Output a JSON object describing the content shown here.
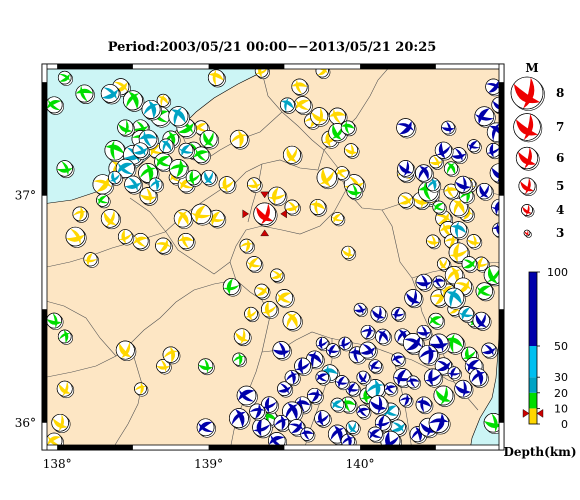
{
  "title": "Period:2003/05/21 00:00−−2013/05/21 20:25",
  "map": {
    "lon_range": [
      137.9,
      140.95
    ],
    "lat_range": [
      35.88,
      37.58
    ],
    "lon_ticks": [
      {
        "value": 138,
        "label": "138°"
      },
      {
        "value": 139,
        "label": "139°"
      },
      {
        "value": 140,
        "label": "140°"
      }
    ],
    "lat_ticks": [
      {
        "value": 36,
        "label": "36°"
      },
      {
        "value": 37,
        "label": "37°"
      }
    ],
    "colors": {
      "land": "#fde6c4",
      "sea": "#ccf5f5",
      "shallow": "#ffd700",
      "mid": "#00dd00",
      "deep30": "#00a3c4",
      "deep": "#0000aa",
      "main_event": "#ee0000"
    },
    "main_event": {
      "lon": 139.37,
      "lat": 36.92,
      "magnitude": 4.5
    }
  },
  "magnitude_legend": {
    "header": "M",
    "items": [
      {
        "label": "8",
        "value": 8
      },
      {
        "label": "7",
        "value": 7
      },
      {
        "label": "6",
        "value": 6
      },
      {
        "label": "5",
        "value": 5
      },
      {
        "label": "4",
        "value": 4
      },
      {
        "label": "3",
        "value": 3
      }
    ]
  },
  "depth_scale": {
    "unit_label": "Depth(km)",
    "ticks": [
      {
        "label": "100",
        "value": 100
      },
      {
        "label": "50",
        "value": 50
      },
      {
        "label": "30",
        "value": 30
      },
      {
        "label": "20",
        "value": 20
      },
      {
        "label": "10",
        "value": 10
      },
      {
        "label": "0",
        "value": 0
      }
    ],
    "bands": [
      {
        "from": 0,
        "to": 10,
        "color": "#ffd700"
      },
      {
        "from": 10,
        "to": 20,
        "color": "#00dd00"
      },
      {
        "from": 20,
        "to": 30,
        "color": "#00a3c4"
      },
      {
        "from": 30,
        "to": 50,
        "color": "#00bff0"
      },
      {
        "from": 50,
        "to": 100,
        "color": "#0000aa"
      }
    ],
    "marker_depth": 10
  },
  "chart_data": {
    "type": "scatter",
    "title": "Period:2003/05/21 00:00−−2013/05/21 20:25",
    "xlabel": "",
    "ylabel": "",
    "xlim": [
      137.9,
      140.95
    ],
    "ylim": [
      35.88,
      37.58
    ],
    "series": [
      {
        "name": "0-10km",
        "color": "#ffd700",
        "points": [
          [
            139.05,
            37.52
          ],
          [
            139.35,
            37.55
          ],
          [
            139.6,
            37.48
          ],
          [
            139.75,
            37.55
          ],
          [
            139.62,
            37.4
          ],
          [
            139.68,
            37.33
          ],
          [
            139.73,
            37.35
          ],
          [
            139.8,
            37.25
          ],
          [
            139.55,
            37.18
          ],
          [
            139.85,
            37.35
          ],
          [
            139.94,
            37.2
          ],
          [
            139.96,
            37.05
          ],
          [
            139.88,
            37.1
          ],
          [
            139.78,
            37.08
          ],
          [
            139.72,
            36.95
          ],
          [
            139.45,
            37.0
          ],
          [
            139.3,
            37.05
          ],
          [
            139.12,
            37.05
          ],
          [
            139.05,
            36.9
          ],
          [
            139.25,
            36.78
          ],
          [
            139.3,
            36.7
          ],
          [
            139.45,
            36.65
          ],
          [
            139.35,
            36.58
          ],
          [
            139.4,
            36.5
          ],
          [
            139.5,
            36.55
          ],
          [
            139.55,
            36.45
          ],
          [
            139.28,
            36.48
          ],
          [
            139.22,
            36.38
          ],
          [
            138.78,
            37.08
          ],
          [
            138.83,
            36.9
          ],
          [
            138.95,
            36.92
          ],
          [
            138.85,
            36.8
          ],
          [
            138.7,
            36.78
          ],
          [
            138.55,
            36.8
          ],
          [
            138.45,
            36.82
          ],
          [
            138.35,
            36.9
          ],
          [
            138.15,
            36.92
          ],
          [
            138.12,
            36.82
          ],
          [
            138.3,
            37.05
          ],
          [
            138.4,
            37.12
          ],
          [
            138.6,
            37.0
          ],
          [
            138.65,
            37.2
          ],
          [
            138.95,
            37.3
          ],
          [
            139.2,
            37.25
          ],
          [
            139.55,
            36.95
          ],
          [
            139.85,
            36.9
          ],
          [
            140.3,
            37.1
          ],
          [
            140.5,
            37.15
          ],
          [
            140.55,
            36.9
          ],
          [
            140.58,
            36.85
          ],
          [
            140.6,
            36.8
          ],
          [
            140.65,
            36.75
          ],
          [
            140.55,
            36.7
          ],
          [
            140.62,
            36.65
          ],
          [
            140.68,
            36.6
          ],
          [
            140.7,
            36.92
          ],
          [
            140.75,
            36.8
          ],
          [
            140.48,
            36.8
          ],
          [
            140.52,
            36.55
          ],
          [
            140.45,
            37.0
          ],
          [
            140.4,
            36.98
          ],
          [
            140.6,
            37.02
          ],
          [
            140.72,
            37.05
          ],
          [
            140.8,
            36.7
          ],
          [
            138.45,
            36.32
          ],
          [
            138.7,
            36.25
          ],
          [
            138.02,
            36.0
          ],
          [
            138.05,
            36.15
          ],
          [
            137.98,
            35.92
          ],
          [
            138.55,
            36.15
          ],
          [
            138.75,
            36.3
          ],
          [
            140.3,
            36.98
          ],
          [
            140.65,
            36.95
          ],
          [
            140.58,
            36.58
          ],
          [
            140.62,
            36.5
          ],
          [
            139.92,
            36.75
          ],
          [
            138.22,
            36.72
          ],
          [
            138.7,
            37.42
          ],
          [
            138.85,
            37.05
          ],
          [
            138.42,
            37.48
          ]
        ]
      },
      {
        "name": "10-20km",
        "color": "#00dd00",
        "points": [
          [
            137.98,
            37.4
          ],
          [
            138.05,
            37.52
          ],
          [
            138.18,
            37.45
          ],
          [
            138.5,
            37.42
          ],
          [
            138.55,
            37.3
          ],
          [
            138.68,
            37.35
          ],
          [
            138.75,
            37.25
          ],
          [
            138.85,
            37.3
          ],
          [
            138.9,
            37.2
          ],
          [
            138.55,
            37.25
          ],
          [
            138.45,
            37.3
          ],
          [
            138.38,
            37.2
          ],
          [
            138.7,
            37.15
          ],
          [
            138.8,
            37.12
          ],
          [
            138.95,
            37.18
          ],
          [
            138.6,
            37.1
          ],
          [
            138.3,
            36.98
          ],
          [
            138.05,
            37.12
          ],
          [
            139.0,
            37.25
          ],
          [
            139.85,
            37.28
          ],
          [
            139.92,
            37.3
          ],
          [
            139.96,
            37.02
          ],
          [
            140.45,
            37.02
          ],
          [
            140.52,
            36.95
          ],
          [
            140.6,
            37.12
          ],
          [
            140.7,
            37.0
          ],
          [
            140.72,
            36.7
          ],
          [
            140.82,
            36.58
          ],
          [
            140.88,
            36.65
          ],
          [
            140.5,
            36.45
          ],
          [
            140.62,
            36.35
          ],
          [
            140.75,
            36.45
          ],
          [
            140.05,
            36.12
          ],
          [
            139.92,
            36.08
          ],
          [
            138.98,
            36.25
          ],
          [
            139.2,
            36.28
          ],
          [
            139.4,
            36.02
          ],
          [
            140.55,
            36.12
          ],
          [
            140.72,
            36.3
          ],
          [
            137.98,
            36.45
          ],
          [
            138.05,
            36.38
          ],
          [
            140.88,
            36.0
          ],
          [
            139.15,
            36.6
          ],
          [
            138.9,
            37.08
          ]
        ]
      },
      {
        "name": "20-30km",
        "color": "#00a3c4",
        "points": [
          [
            138.6,
            37.25
          ],
          [
            138.72,
            37.22
          ],
          [
            138.5,
            37.18
          ],
          [
            138.55,
            37.2
          ],
          [
            138.45,
            37.12
          ],
          [
            138.38,
            37.08
          ],
          [
            138.65,
            37.05
          ],
          [
            138.5,
            37.05
          ],
          [
            138.85,
            37.2
          ],
          [
            139.0,
            37.08
          ],
          [
            138.8,
            37.35
          ],
          [
            138.62,
            37.38
          ],
          [
            139.52,
            37.4
          ],
          [
            140.48,
            37.05
          ],
          [
            140.62,
            36.55
          ],
          [
            140.7,
            36.48
          ],
          [
            140.65,
            36.85
          ],
          [
            139.85,
            36.08
          ],
          [
            140.1,
            36.15
          ],
          [
            139.8,
            36.22
          ],
          [
            140.2,
            36.05
          ],
          [
            139.95,
            35.98
          ],
          [
            140.25,
            35.98
          ],
          [
            138.35,
            37.45
          ]
        ]
      },
      {
        "name": "50-100km",
        "color": "#0000aa",
        "points": [
          [
            140.88,
            37.48
          ],
          [
            140.92,
            37.4
          ],
          [
            140.82,
            37.35
          ],
          [
            140.88,
            37.2
          ],
          [
            140.75,
            37.22
          ],
          [
            140.65,
            37.18
          ],
          [
            140.9,
            37.28
          ],
          [
            140.68,
            37.05
          ],
          [
            140.82,
            37.02
          ],
          [
            140.92,
            36.95
          ],
          [
            140.92,
            36.85
          ],
          [
            140.55,
            37.2
          ],
          [
            140.42,
            37.1
          ],
          [
            140.3,
            37.12
          ],
          [
            140.52,
            36.62
          ],
          [
            140.42,
            36.62
          ],
          [
            140.35,
            36.55
          ],
          [
            140.25,
            36.48
          ],
          [
            140.28,
            36.38
          ],
          [
            140.35,
            36.35
          ],
          [
            140.42,
            36.4
          ],
          [
            140.52,
            36.35
          ],
          [
            140.45,
            36.3
          ],
          [
            140.55,
            36.25
          ],
          [
            140.62,
            36.22
          ],
          [
            140.68,
            36.15
          ],
          [
            140.75,
            36.25
          ],
          [
            140.85,
            36.32
          ],
          [
            140.8,
            36.45
          ],
          [
            140.78,
            36.2
          ],
          [
            139.75,
            36.35
          ],
          [
            139.82,
            36.32
          ],
          [
            139.9,
            36.35
          ],
          [
            139.98,
            36.3
          ],
          [
            140.05,
            36.32
          ],
          [
            140.1,
            36.25
          ],
          [
            140.02,
            36.2
          ],
          [
            139.95,
            36.15
          ],
          [
            139.88,
            36.18
          ],
          [
            139.75,
            36.2
          ],
          [
            139.7,
            36.12
          ],
          [
            139.62,
            36.08
          ],
          [
            139.55,
            36.05
          ],
          [
            139.48,
            36.0
          ],
          [
            139.4,
            36.08
          ],
          [
            139.35,
            35.98
          ],
          [
            139.45,
            35.92
          ],
          [
            139.58,
            35.98
          ],
          [
            139.65,
            35.95
          ],
          [
            139.75,
            36.02
          ],
          [
            139.85,
            35.95
          ],
          [
            139.92,
            35.92
          ],
          [
            140.02,
            36.05
          ],
          [
            140.12,
            36.08
          ],
          [
            140.15,
            36.0
          ],
          [
            140.2,
            36.15
          ],
          [
            140.28,
            36.2
          ],
          [
            140.35,
            36.18
          ],
          [
            140.42,
            36.08
          ],
          [
            140.3,
            36.1
          ],
          [
            140.38,
            35.95
          ],
          [
            140.45,
            35.98
          ],
          [
            140.52,
            36.0
          ],
          [
            140.2,
            35.92
          ],
          [
            140.1,
            35.95
          ],
          [
            139.2,
            36.02
          ],
          [
            139.25,
            36.12
          ],
          [
            139.32,
            36.05
          ],
          [
            140.05,
            36.4
          ],
          [
            139.7,
            36.28
          ],
          [
            140.15,
            36.38
          ],
          [
            140.25,
            36.28
          ],
          [
            140.12,
            36.48
          ],
          [
            139.62,
            36.25
          ],
          [
            140.0,
            36.5
          ],
          [
            140.48,
            36.2
          ],
          [
            139.5,
            36.15
          ],
          [
            139.55,
            36.2
          ],
          [
            138.98,
            35.98
          ],
          [
            140.92,
            37.1
          ],
          [
            140.58,
            37.3
          ],
          [
            140.3,
            37.3
          ],
          [
            139.48,
            36.32
          ]
        ]
      }
    ]
  }
}
